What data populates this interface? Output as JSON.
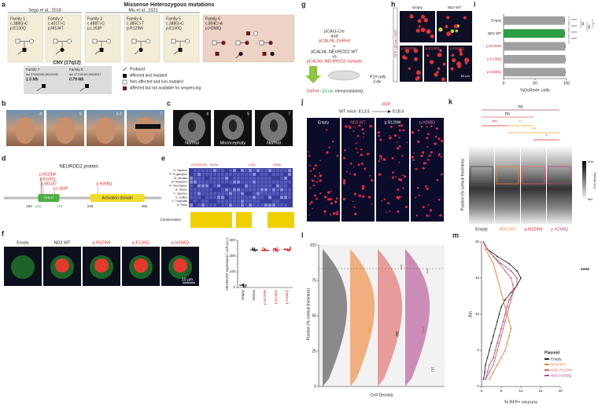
{
  "a": {
    "letter": "a",
    "title": "Missense Heterozygous mutations",
    "refs": [
      "Sega et al., 2018",
      "Mis et al., 2021"
    ],
    "families": [
      {
        "name": "Family 1",
        "dna": "c.388G>C",
        "protein": "p.E130Q"
      },
      {
        "name": "Family 2",
        "dna": "c.401T>C",
        "protein": "p.M134T"
      },
      {
        "name": "Family 3",
        "dna": "c.488T>C",
        "protein": "p.L163P"
      },
      {
        "name": "Family 4",
        "dna": "c.385C>T",
        "protein": "p.R129W"
      },
      {
        "name": "Family 5",
        "dna": "c.388G>C",
        "protein": "p.E130Q"
      },
      {
        "name": "Family 6",
        "dna": "c.804C>A",
        "protein": "p.H268Q"
      }
    ],
    "cnv_title": "CNV (17q12)",
    "cnv": [
      {
        "name": "Family 7",
        "region": "del 37560326-38120199",
        "size": "1.5 Mb"
      },
      {
        "name": "Family 8",
        "region": "del 37735784-38528117",
        "size": "0.79 Mb"
      }
    ],
    "legend": [
      "Proband",
      "Affected and mutated",
      "Non-affected and non-mutated",
      "Affected but not available for sequencing"
    ]
  },
  "b": {
    "letter": "b",
    "photo_ids": [
      "4",
      "5",
      "6-2",
      "7"
    ]
  },
  "c": {
    "letter": "c",
    "scan_ids": [
      "4",
      "5",
      "7"
    ],
    "findings": [
      "Normal",
      "Microcephaly",
      "Normal"
    ]
  },
  "d": {
    "letter": "d",
    "title": "NEUROD2 protein",
    "mutations": [
      "p.R129W",
      "p.E130Q",
      "p.M134T",
      "p.L163P",
      "p.H268Q"
    ],
    "domains": [
      "bHLH",
      "Activation domain"
    ],
    "positions": [
      100,
      122,
      174,
      249,
      382
    ]
  },
  "e": {
    "letter": "e",
    "residues": [
      "R129",
      "E130",
      "M134",
      "L163",
      "H268"
    ],
    "species": [
      "H. Sapiens",
      "P. Troglodytes",
      "M. Mulatta",
      "M. Musculus",
      "R. Norvegicus",
      "B. Taurus",
      "C. Jacchus",
      "G. Gallus",
      "X. Tropicalis",
      "D. Rerio"
    ],
    "conservation_label": "Conservation"
  },
  "f": {
    "letter": "f",
    "images": [
      "Empty",
      "ND2 WT",
      "p.R129W",
      "p.E130Q",
      "p.H268Q"
    ],
    "scale_bar": "10 µm",
    "chart": {
      "type": "scatter",
      "ylabel": "NEUROD2 expression / cell (a.u.)",
      "categories": [
        "Empty",
        "ND2wt",
        "p.R129W",
        "p.E130Q",
        "p.H268Q"
      ],
      "values": [
        15,
        240,
        238,
        240,
        242
      ],
      "colors": [
        "#222222",
        "#222222",
        "#d62728",
        "#d62728",
        "#d62728"
      ],
      "ylim": [
        0,
        300
      ],
      "yticks": [
        0,
        100,
        200,
        300
      ]
    }
  },
  "g": {
    "letter": "g",
    "lines": [
      "pCAG-Cre",
      "and",
      "pCALNL-DsRed",
      "+",
      "pCALNL-NEUROD2 WT",
      "vs",
      "pCALNL-NEUROD2 variants"
    ],
    "culture": [
      "P19 cells",
      "3 div"
    ],
    "staining": [
      "DsRed",
      "/ β3-tub",
      "immunostaining"
    ]
  },
  "h": {
    "letter": "h",
    "stain": "RFP / β3-tub / DAPI",
    "images": [
      "Empty",
      "ND2 WT",
      "p.R129W",
      "p.E130Q",
      "p.H268Q"
    ],
    "scale_bar": "50 µm"
  },
  "i": {
    "letter": "i",
    "chart": {
      "type": "bar",
      "categories": [
        "Empty",
        "ND2 WT",
        "p.R129W",
        "p.E130Q",
        "p.H268Q"
      ],
      "values": [
        97,
        97,
        98,
        98,
        98
      ],
      "colors": [
        "#a0a0a0",
        "#2e9e44",
        "#a0a0a0",
        "#a0a0a0",
        "#a0a0a0"
      ],
      "xlabel": "%DsRed+ cells",
      "xlim": [
        0,
        100
      ],
      "xticks": [
        0,
        50,
        100
      ],
      "significance": [
        "****",
        "****",
        "****",
        "****",
        "ns",
        "ns",
        "*"
      ]
    }
  },
  "j": {
    "letter": "j",
    "schema": "WT mice: E13.5",
    "arrow_end": "E18.5",
    "marker": "RFP",
    "images": [
      "Empty",
      "ND2-WT",
      "p.R129W",
      "p.H268Q"
    ]
  },
  "k": {
    "letter": "k",
    "ylabel": "Position (% cortical thickness)",
    "conditions": [
      "Empty",
      "ND2-WT",
      "p.R129W",
      "p.H268Q"
    ],
    "significance": [
      "ns",
      "ns",
      "***",
      "**",
      "***",
      "*"
    ],
    "colorbar": [
      "Max",
      "Min"
    ],
    "colorbar_label": "Cell density"
  },
  "l": {
    "letter": "l",
    "ylabel": "Position (% cortical thickness)",
    "xlabel": "Cell Density",
    "ylim": [
      0,
      100
    ],
    "yticks": [
      0,
      25,
      50,
      75,
      100
    ],
    "annotations": [
      "***",
      "***",
      "ns",
      "ns",
      "***",
      "ns"
    ]
  },
  "m": {
    "letter": "m",
    "chart": {
      "type": "line",
      "ylabel": "Bin",
      "xlabel": "% RFP+ neurons",
      "legend_title": "Plasmid",
      "significance": "****",
      "bins": [
        1,
        2,
        3,
        4,
        5,
        6,
        7,
        8,
        9,
        10,
        11,
        12,
        13,
        14,
        15,
        16,
        17,
        18,
        19,
        20
      ],
      "xlim": [
        0,
        20
      ],
      "xticks": [
        0,
        5,
        10,
        15,
        20
      ],
      "ylim": [
        0,
        20
      ],
      "yticks": [
        0,
        5,
        10,
        15,
        20
      ],
      "series": [
        {
          "name": "Empty",
          "color": "#222222",
          "values": [
            0.5,
            0.8,
            1,
            1.5,
            2,
            2.5,
            3,
            3.5,
            4,
            4.5,
            5,
            6,
            7.5,
            9,
            10,
            9,
            7,
            4,
            1.5,
            0.5
          ]
        },
        {
          "name": "ND2-WT",
          "color": "#f08030",
          "values": [
            2,
            3,
            4,
            5,
            6,
            6.5,
            7,
            7.5,
            7,
            6.5,
            6,
            5.5,
            5,
            4.5,
            4,
            3.5,
            3,
            2,
            1,
            0.5
          ]
        },
        {
          "name": "ND2-R129W",
          "color": "#e06060",
          "values": [
            1,
            2,
            3,
            3.5,
            4,
            4.5,
            5,
            5.5,
            6,
            6.5,
            7,
            7.5,
            8,
            8,
            7.5,
            6,
            4.5,
            3,
            1.5,
            0.5
          ]
        },
        {
          "name": "ND2-H268Q",
          "color": "#b04a90",
          "values": [
            1,
            1.5,
            2,
            3,
            3.5,
            4,
            4.5,
            5,
            5.5,
            6,
            6.5,
            7,
            8,
            9,
            9,
            7.5,
            5,
            3,
            1.5,
            0.5
          ]
        }
      ]
    }
  }
}
